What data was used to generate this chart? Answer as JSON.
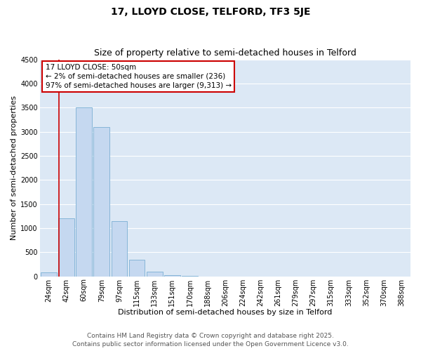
{
  "title": "17, LLOYD CLOSE, TELFORD, TF3 5JE",
  "subtitle": "Size of property relative to semi-detached houses in Telford",
  "xlabel": "Distribution of semi-detached houses by size in Telford",
  "ylabel": "Number of semi-detached properties",
  "bin_labels": [
    "24sqm",
    "42sqm",
    "60sqm",
    "79sqm",
    "97sqm",
    "115sqm",
    "133sqm",
    "151sqm",
    "170sqm",
    "188sqm",
    "206sqm",
    "224sqm",
    "242sqm",
    "261sqm",
    "279sqm",
    "297sqm",
    "315sqm",
    "333sqm",
    "352sqm",
    "370sqm",
    "388sqm"
  ],
  "bar_values": [
    80,
    1200,
    3500,
    3100,
    1150,
    350,
    100,
    30,
    5,
    2,
    1,
    0,
    0,
    0,
    0,
    0,
    0,
    0,
    0,
    0,
    0
  ],
  "bar_color": "#c5d8f0",
  "bar_edge_color": "#7aafd4",
  "bg_color": "#dce8f5",
  "grid_color": "#ffffff",
  "vline_color": "#cc0000",
  "vline_position": 0.575,
  "ylim": [
    0,
    4500
  ],
  "yticks": [
    0,
    500,
    1000,
    1500,
    2000,
    2500,
    3000,
    3500,
    4000,
    4500
  ],
  "annotation_title": "17 LLOYD CLOSE: 50sqm",
  "annotation_line1": "← 2% of semi-detached houses are smaller (236)",
  "annotation_line2": "97% of semi-detached houses are larger (9,313) →",
  "annotation_box_edge_color": "#cc0000",
  "footer_line1": "Contains HM Land Registry data © Crown copyright and database right 2025.",
  "footer_line2": "Contains public sector information licensed under the Open Government Licence v3.0.",
  "title_fontsize": 10,
  "subtitle_fontsize": 9,
  "axis_label_fontsize": 8,
  "tick_fontsize": 7,
  "annotation_fontsize": 7.5,
  "footer_fontsize": 6.5
}
